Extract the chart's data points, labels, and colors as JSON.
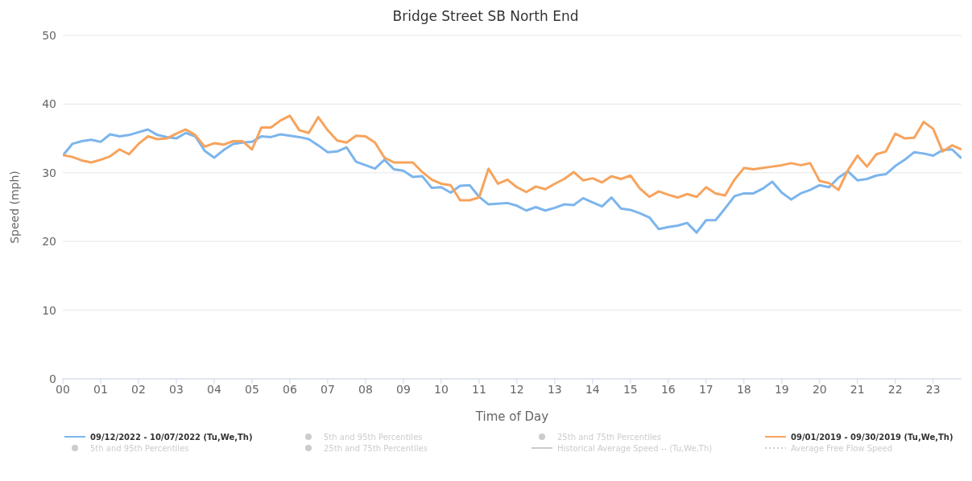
{
  "chart_data": {
    "type": "line",
    "title": "Bridge Street SB North End",
    "xlabel": "Time of Day",
    "ylabel": "Speed (mph)",
    "x": [
      0,
      0.25,
      0.5,
      0.75,
      1,
      1.25,
      1.5,
      1.75,
      2,
      2.25,
      2.5,
      2.75,
      3,
      3.25,
      3.5,
      3.75,
      4,
      4.25,
      4.5,
      4.75,
      5,
      5.25,
      5.5,
      5.75,
      6,
      6.25,
      6.5,
      6.75,
      7,
      7.25,
      7.5,
      7.75,
      8,
      8.25,
      8.5,
      8.75,
      9,
      9.25,
      9.5,
      9.75,
      10,
      10.25,
      10.5,
      10.75,
      11,
      11.25,
      11.5,
      11.75,
      12,
      12.25,
      12.5,
      12.75,
      13,
      13.25,
      13.5,
      13.75,
      14,
      14.25,
      14.5,
      14.75,
      15,
      15.25,
      15.5,
      15.75,
      16,
      16.25,
      16.5,
      16.75,
      17,
      17.25,
      17.5,
      17.75,
      18,
      18.25,
      18.5,
      18.75,
      19,
      19.25,
      19.5,
      19.75,
      20,
      20.25,
      20.5,
      20.75,
      21,
      21.25,
      21.5,
      21.75,
      22,
      22.25,
      22.5,
      22.75,
      23,
      23.25,
      23.5,
      23.75
    ],
    "xlim": [
      0,
      23.75
    ],
    "xticks": [
      {
        "value": 0,
        "label": "00"
      },
      {
        "value": 1,
        "label": "01"
      },
      {
        "value": 2,
        "label": "02"
      },
      {
        "value": 3,
        "label": "03"
      },
      {
        "value": 4,
        "label": "04"
      },
      {
        "value": 5,
        "label": "05"
      },
      {
        "value": 6,
        "label": "06"
      },
      {
        "value": 7,
        "label": "07"
      },
      {
        "value": 8,
        "label": "08"
      },
      {
        "value": 9,
        "label": "09"
      },
      10,
      11,
      12,
      13,
      14,
      15,
      16,
      17,
      18,
      19,
      20,
      21,
      22,
      23
    ],
    "ylim": [
      0,
      50
    ],
    "yticks": [
      0,
      10,
      20,
      30,
      40,
      50
    ],
    "grid": "y",
    "legend": "bottom",
    "line_style": "solid",
    "marker": "none",
    "series": [
      {
        "name": "09/12/2022 - 10/07/2022 (Tu,We,Th)",
        "type": "line",
        "color": "#7cb5ec",
        "values": [
          32.5,
          34.2,
          34.6,
          34.8,
          34.5,
          35.6,
          35.3,
          35.5,
          35.9,
          36.3,
          35.5,
          35.2,
          35.0,
          35.8,
          35.3,
          33.2,
          32.2,
          33.3,
          34.2,
          34.4,
          34.5,
          35.3,
          35.2,
          35.6,
          35.4,
          35.2,
          34.9,
          34.0,
          33.0,
          33.1,
          33.7,
          31.6,
          31.1,
          30.6,
          31.9,
          30.5,
          30.3,
          29.4,
          29.5,
          27.8,
          27.9,
          27.1,
          28.1,
          28.2,
          26.5,
          25.4,
          25.5,
          25.6,
          25.2,
          24.5,
          25.0,
          24.5,
          24.9,
          25.4,
          25.3,
          26.3,
          25.7,
          25.1,
          26.4,
          24.8,
          24.6,
          24.1,
          23.5,
          21.8,
          22.1,
          22.3,
          22.7,
          21.3,
          23.1,
          23.1,
          24.8,
          26.6,
          27.0,
          27.0,
          27.7,
          28.7,
          27.1,
          26.1,
          27.0,
          27.5,
          28.2,
          27.9,
          29.3,
          30.2,
          28.9,
          29.1,
          29.6,
          29.8,
          31.0,
          31.9,
          33.0,
          32.8,
          32.5,
          33.3,
          33.4,
          32.1
        ]
      },
      {
        "name": "5th and 95th Percentiles",
        "type": "area",
        "color": "#cccccc",
        "values": [
          null,
          null,
          null,
          null,
          null,
          null,
          null,
          null,
          null,
          null,
          null,
          null,
          null,
          null,
          null,
          null,
          null,
          null,
          null,
          null,
          null,
          null,
          null,
          null,
          null,
          null,
          null,
          null,
          null,
          null,
          null,
          null,
          null,
          null,
          null,
          null,
          null,
          null,
          null,
          null,
          null,
          null,
          null,
          null,
          null,
          null,
          null,
          null,
          null,
          null,
          null,
          null,
          null,
          null,
          null,
          null,
          null,
          null,
          null,
          null,
          null,
          null,
          null,
          null,
          null,
          null,
          null,
          null,
          null,
          null,
          null,
          null,
          null,
          null,
          null,
          null,
          null,
          null,
          null,
          null,
          null,
          null,
          null,
          null,
          null,
          null,
          null,
          null,
          null,
          null,
          null,
          null,
          null,
          null,
          null,
          null
        ]
      },
      {
        "name": "25th and 75th Percentiles",
        "type": "area",
        "color": "#cccccc",
        "values": [
          null,
          null,
          null,
          null,
          null,
          null,
          null,
          null,
          null,
          null,
          null,
          null,
          null,
          null,
          null,
          null,
          null,
          null,
          null,
          null,
          null,
          null,
          null,
          null,
          null,
          null,
          null,
          null,
          null,
          null,
          null,
          null,
          null,
          null,
          null,
          null,
          null,
          null,
          null,
          null,
          null,
          null,
          null,
          null,
          null,
          null,
          null,
          null,
          null,
          null,
          null,
          null,
          null,
          null,
          null,
          null,
          null,
          null,
          null,
          null,
          null,
          null,
          null,
          null,
          null,
          null,
          null,
          null,
          null,
          null,
          null,
          null,
          null,
          null,
          null,
          null,
          null,
          null,
          null,
          null,
          null,
          null,
          null,
          null,
          null,
          null,
          null,
          null,
          null,
          null,
          null,
          null,
          null,
          null,
          null,
          null
        ]
      },
      {
        "name": "09/01/2019 - 09/30/2019 (Tu,We,Th)",
        "type": "line",
        "color": "#f7a35c",
        "values": [
          32.6,
          32.3,
          31.8,
          31.5,
          31.9,
          32.4,
          33.4,
          32.7,
          34.2,
          35.3,
          34.9,
          35.0,
          35.7,
          36.3,
          35.5,
          33.8,
          34.3,
          34.1,
          34.6,
          34.6,
          33.4,
          36.6,
          36.6,
          37.6,
          38.3,
          36.2,
          35.8,
          38.1,
          36.2,
          34.7,
          34.4,
          35.4,
          35.3,
          34.4,
          32.2,
          31.5,
          31.5,
          31.5,
          30.1,
          29.0,
          28.4,
          28.2,
          26.0,
          26.0,
          26.4,
          30.6,
          28.4,
          29.0,
          27.9,
          27.2,
          28.0,
          27.6,
          28.4,
          29.1,
          30.1,
          28.9,
          29.2,
          28.6,
          29.5,
          29.1,
          29.6,
          27.7,
          26.5,
          27.3,
          26.8,
          26.4,
          26.9,
          26.5,
          27.9,
          27.0,
          26.7,
          29.0,
          30.7,
          30.5,
          30.7,
          30.9,
          31.1,
          31.4,
          31.1,
          31.4,
          28.8,
          28.5,
          27.5,
          30.4,
          32.5,
          30.9,
          32.7,
          33.1,
          35.7,
          35.0,
          35.1,
          37.4,
          36.4,
          33.1,
          34.0,
          33.4
        ]
      },
      {
        "name": "5th and 95th Percentiles",
        "type": "area",
        "color": "#cccccc",
        "values": [
          null,
          null,
          null,
          null,
          null,
          null,
          null,
          null,
          null,
          null,
          null,
          null,
          null,
          null,
          null,
          null,
          null,
          null,
          null,
          null,
          null,
          null,
          null,
          null,
          null,
          null,
          null,
          null,
          null,
          null,
          null,
          null,
          null,
          null,
          null,
          null,
          null,
          null,
          null,
          null,
          null,
          null,
          null,
          null,
          null,
          null,
          null,
          null,
          null,
          null,
          null,
          null,
          null,
          null,
          null,
          null,
          null,
          null,
          null,
          null,
          null,
          null,
          null,
          null,
          null,
          null,
          null,
          null,
          null,
          null,
          null,
          null,
          null,
          null,
          null,
          null,
          null,
          null,
          null,
          null,
          null,
          null,
          null,
          null,
          null,
          null,
          null,
          null,
          null,
          null,
          null,
          null,
          null,
          null,
          null,
          null
        ]
      },
      {
        "name": "25th and 75th Percentiles",
        "type": "area",
        "color": "#cccccc",
        "values": [
          null,
          null,
          null,
          null,
          null,
          null,
          null,
          null,
          null,
          null,
          null,
          null,
          null,
          null,
          null,
          null,
          null,
          null,
          null,
          null,
          null,
          null,
          null,
          null,
          null,
          null,
          null,
          null,
          null,
          null,
          null,
          null,
          null,
          null,
          null,
          null,
          null,
          null,
          null,
          null,
          null,
          null,
          null,
          null,
          null,
          null,
          null,
          null,
          null,
          null,
          null,
          null,
          null,
          null,
          null,
          null,
          null,
          null,
          null,
          null,
          null,
          null,
          null,
          null,
          null,
          null,
          null,
          null,
          null,
          null,
          null,
          null,
          null,
          null,
          null,
          null,
          null,
          null,
          null,
          null,
          null,
          null,
          null,
          null,
          null,
          null,
          null,
          null,
          null,
          null,
          null,
          null,
          null,
          null,
          null,
          null
        ]
      },
      {
        "name": "Historical Average Speed -- (Tu,We,Th)",
        "type": "line",
        "color": "#cccccc",
        "values": [
          null,
          null,
          null,
          null,
          null,
          null,
          null,
          null,
          null,
          null,
          null,
          null,
          null,
          null,
          null,
          null,
          null,
          null,
          null,
          null,
          null,
          null,
          null,
          null,
          null,
          null,
          null,
          null,
          null,
          null,
          null,
          null,
          null,
          null,
          null,
          null,
          null,
          null,
          null,
          null,
          null,
          null,
          null,
          null,
          null,
          null,
          null,
          null,
          null,
          null,
          null,
          null,
          null,
          null,
          null,
          null,
          null,
          null,
          null,
          null,
          null,
          null,
          null,
          null,
          null,
          null,
          null,
          null,
          null,
          null,
          null,
          null,
          null,
          null,
          null,
          null,
          null,
          null,
          null,
          null,
          null,
          null,
          null,
          null,
          null,
          null,
          null,
          null,
          null,
          null,
          null,
          null,
          null,
          null,
          null,
          null
        ]
      },
      {
        "name": "Average Free Flow Speed",
        "type": "line",
        "line_style": "dotted",
        "color": "#cccccc",
        "values": [
          null,
          null,
          null,
          null,
          null,
          null,
          null,
          null,
          null,
          null,
          null,
          null,
          null,
          null,
          null,
          null,
          null,
          null,
          null,
          null,
          null,
          null,
          null,
          null,
          null,
          null,
          null,
          null,
          null,
          null,
          null,
          null,
          null,
          null,
          null,
          null,
          null,
          null,
          null,
          null,
          null,
          null,
          null,
          null,
          null,
          null,
          null,
          null,
          null,
          null,
          null,
          null,
          null,
          null,
          null,
          null,
          null,
          null,
          null,
          null,
          null,
          null,
          null,
          null,
          null,
          null,
          null,
          null,
          null,
          null,
          null,
          null,
          null,
          null,
          null,
          null,
          null,
          null,
          null,
          null,
          null,
          null,
          null,
          null,
          null,
          null,
          null,
          null,
          null,
          null,
          null,
          null,
          null,
          null,
          null,
          null
        ]
      }
    ]
  }
}
